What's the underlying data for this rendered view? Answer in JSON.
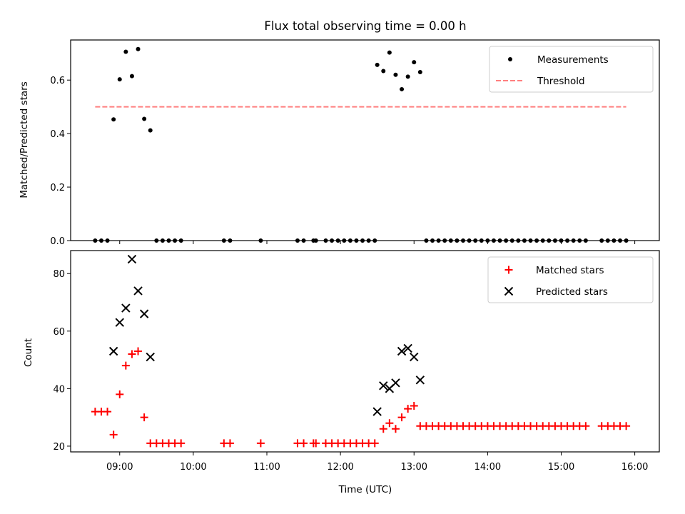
{
  "figure": {
    "title": "Flux total observing time = 0.00 h"
  },
  "chart_data": [
    {
      "type": "scatter",
      "ylabel": "Matched/Predicted stars",
      "xlabel": "",
      "xlim": [
        "08:20",
        "16:20"
      ],
      "ylim": [
        0,
        0.75
      ],
      "yticks": [
        "0.0",
        "0.2",
        "0.4",
        "0.6"
      ],
      "ytick_values": [
        0,
        0.2,
        0.4,
        0.6
      ],
      "xtick_labels_visible": false,
      "grid": false,
      "legend": "top-right",
      "series": [
        {
          "name": "Measurements",
          "marker": "dot",
          "color": "#000000",
          "points": [
            [
              "08:40",
              0
            ],
            [
              "08:45",
              0
            ],
            [
              "08:50",
              0
            ],
            [
              "08:55",
              0.453
            ],
            [
              "09:00",
              0.603
            ],
            [
              "09:05",
              0.706
            ],
            [
              "09:10",
              0.615
            ],
            [
              "09:15",
              0.716
            ],
            [
              "09:20",
              0.455
            ],
            [
              "09:25",
              0.412
            ],
            [
              "09:30",
              0
            ],
            [
              "09:35",
              0
            ],
            [
              "09:40",
              0
            ],
            [
              "09:45",
              0
            ],
            [
              "09:50",
              0
            ],
            [
              "10:25",
              0
            ],
            [
              "10:30",
              0
            ],
            [
              "10:55",
              0
            ],
            [
              "11:25",
              0
            ],
            [
              "11:30",
              0
            ],
            [
              "11:38",
              0
            ],
            [
              "11:40",
              0
            ],
            [
              "11:48",
              0
            ],
            [
              "11:53",
              0
            ],
            [
              "11:58",
              0
            ],
            [
              "12:03",
              0
            ],
            [
              "12:08",
              0
            ],
            [
              "12:13",
              0
            ],
            [
              "12:18",
              0
            ],
            [
              "12:23",
              0
            ],
            [
              "12:28",
              0
            ],
            [
              "12:30",
              0.657
            ],
            [
              "12:35",
              0.634
            ],
            [
              "12:40",
              0.703
            ],
            [
              "12:45",
              0.62
            ],
            [
              "12:50",
              0.566
            ],
            [
              "12:55",
              0.613
            ],
            [
              "13:00",
              0.667
            ],
            [
              "13:05",
              0.63
            ],
            [
              "13:10",
              0
            ],
            [
              "13:15",
              0
            ],
            [
              "13:20",
              0
            ],
            [
              "13:25",
              0
            ],
            [
              "13:30",
              0
            ],
            [
              "13:35",
              0
            ],
            [
              "13:40",
              0
            ],
            [
              "13:45",
              0
            ],
            [
              "13:50",
              0
            ],
            [
              "13:55",
              0
            ],
            [
              "14:00",
              0
            ],
            [
              "14:05",
              0
            ],
            [
              "14:10",
              0
            ],
            [
              "14:15",
              0
            ],
            [
              "14:20",
              0
            ],
            [
              "14:25",
              0
            ],
            [
              "14:30",
              0
            ],
            [
              "14:35",
              0
            ],
            [
              "14:40",
              0
            ],
            [
              "14:45",
              0
            ],
            [
              "14:50",
              0
            ],
            [
              "14:55",
              0
            ],
            [
              "15:00",
              0
            ],
            [
              "15:05",
              0
            ],
            [
              "15:10",
              0
            ],
            [
              "15:15",
              0
            ],
            [
              "15:20",
              0
            ],
            [
              "15:33",
              0
            ],
            [
              "15:38",
              0
            ],
            [
              "15:43",
              0
            ],
            [
              "15:48",
              0
            ],
            [
              "15:53",
              0
            ]
          ]
        },
        {
          "name": "Threshold",
          "type": "line",
          "style": "dashed",
          "color": "#ff7f7f",
          "points": [
            [
              "08:40",
              0.5
            ],
            [
              "15:53",
              0.5
            ]
          ]
        }
      ]
    },
    {
      "type": "scatter",
      "ylabel": "Count",
      "xlabel": "Time (UTC)",
      "xlim": [
        "08:20",
        "16:20"
      ],
      "ylim": [
        18,
        88
      ],
      "yticks": [
        "20",
        "40",
        "60",
        "80"
      ],
      "ytick_values": [
        20,
        40,
        60,
        80
      ],
      "xticks": [
        "09:00",
        "10:00",
        "11:00",
        "12:00",
        "13:00",
        "14:00",
        "15:00",
        "16:00"
      ],
      "grid": false,
      "legend": "top-right",
      "series": [
        {
          "name": "Matched stars",
          "marker": "plus",
          "color": "#ff0000",
          "points": [
            [
              "08:40",
              32
            ],
            [
              "08:45",
              32
            ],
            [
              "08:50",
              32
            ],
            [
              "08:55",
              24
            ],
            [
              "09:00",
              38
            ],
            [
              "09:05",
              48
            ],
            [
              "09:10",
              52
            ],
            [
              "09:15",
              53
            ],
            [
              "09:20",
              30
            ],
            [
              "09:25",
              21
            ],
            [
              "09:30",
              21
            ],
            [
              "09:35",
              21
            ],
            [
              "09:40",
              21
            ],
            [
              "09:45",
              21
            ],
            [
              "09:50",
              21
            ],
            [
              "10:25",
              21
            ],
            [
              "10:30",
              21
            ],
            [
              "10:55",
              21
            ],
            [
              "11:25",
              21
            ],
            [
              "11:30",
              21
            ],
            [
              "11:38",
              21
            ],
            [
              "11:40",
              21
            ],
            [
              "11:48",
              21
            ],
            [
              "11:53",
              21
            ],
            [
              "11:58",
              21
            ],
            [
              "12:03",
              21
            ],
            [
              "12:08",
              21
            ],
            [
              "12:13",
              21
            ],
            [
              "12:18",
              21
            ],
            [
              "12:23",
              21
            ],
            [
              "12:28",
              21
            ],
            [
              "12:35",
              26
            ],
            [
              "12:40",
              28
            ],
            [
              "12:45",
              26
            ],
            [
              "12:50",
              30
            ],
            [
              "12:55",
              33
            ],
            [
              "13:00",
              34
            ],
            [
              "13:05",
              27
            ],
            [
              "13:10",
              27
            ],
            [
              "13:15",
              27
            ],
            [
              "13:20",
              27
            ],
            [
              "13:25",
              27
            ],
            [
              "13:30",
              27
            ],
            [
              "13:35",
              27
            ],
            [
              "13:40",
              27
            ],
            [
              "13:45",
              27
            ],
            [
              "13:50",
              27
            ],
            [
              "13:55",
              27
            ],
            [
              "14:00",
              27
            ],
            [
              "14:05",
              27
            ],
            [
              "14:10",
              27
            ],
            [
              "14:15",
              27
            ],
            [
              "14:20",
              27
            ],
            [
              "14:25",
              27
            ],
            [
              "14:30",
              27
            ],
            [
              "14:35",
              27
            ],
            [
              "14:40",
              27
            ],
            [
              "14:45",
              27
            ],
            [
              "14:50",
              27
            ],
            [
              "14:55",
              27
            ],
            [
              "15:00",
              27
            ],
            [
              "15:05",
              27
            ],
            [
              "15:10",
              27
            ],
            [
              "15:15",
              27
            ],
            [
              "15:20",
              27
            ],
            [
              "15:33",
              27
            ],
            [
              "15:38",
              27
            ],
            [
              "15:43",
              27
            ],
            [
              "15:48",
              27
            ],
            [
              "15:53",
              27
            ]
          ]
        },
        {
          "name": "Predicted stars",
          "marker": "x",
          "color": "#000000",
          "points": [
            [
              "08:55",
              53
            ],
            [
              "09:00",
              63
            ],
            [
              "09:05",
              68
            ],
            [
              "09:10",
              85
            ],
            [
              "09:15",
              74
            ],
            [
              "09:20",
              66
            ],
            [
              "09:25",
              51
            ],
            [
              "12:30",
              32
            ],
            [
              "12:35",
              41
            ],
            [
              "12:40",
              40
            ],
            [
              "12:45",
              42
            ],
            [
              "12:50",
              53
            ],
            [
              "12:55",
              54
            ],
            [
              "13:00",
              51
            ],
            [
              "13:05",
              43
            ]
          ]
        }
      ]
    }
  ]
}
